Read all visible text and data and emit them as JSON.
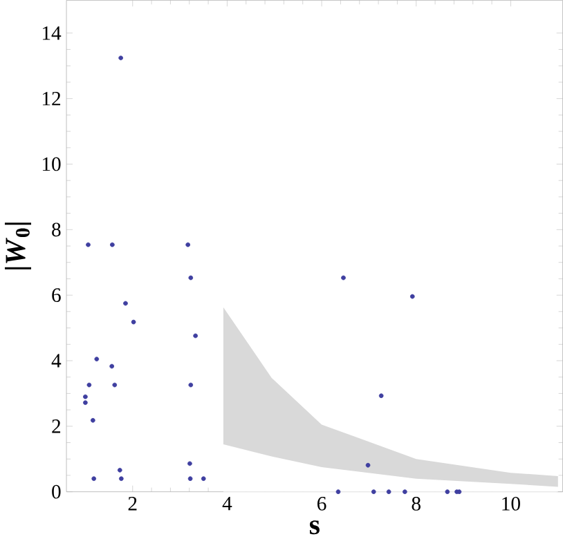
{
  "chart_data": {
    "type": "scatter",
    "xlabel": "s",
    "ylabel": "|*W*$_{0}$|",
    "xlim": [
      0.6,
      11.1
    ],
    "ylim": [
      0,
      15
    ],
    "xticks": [
      2,
      4,
      6,
      8,
      10
    ],
    "yticks": [
      0,
      2,
      4,
      6,
      8,
      10,
      12,
      14
    ],
    "grid": false,
    "stacked": true,
    "series": [
      {
        "type": "area",
        "color": "#ffffff",
        "x": [
          3.92,
          4.94,
          6.0,
          8.0,
          10.0,
          11.0
        ],
        "values": [
          1.45,
          1.08,
          0.75,
          0.4,
          0.24,
          0.15
        ]
      },
      {
        "type": "area",
        "color": "#d9d9d9",
        "x": [
          3.92,
          4.94,
          6.0,
          8.0,
          10.0,
          11.0
        ],
        "values": [
          4.18,
          2.4,
          1.3,
          0.6,
          0.34,
          0.33
        ]
      },
      {
        "color": "#3f3fa0",
        "x": [
          1.0,
          1.0,
          1.08,
          1.16,
          1.24,
          1.18,
          1.56,
          1.62,
          1.73,
          1.76,
          1.85,
          2.02,
          3.23,
          3.33,
          3.23,
          3.21,
          3.22,
          3.5,
          1.06,
          1.57,
          1.75,
          3.17,
          6.46,
          7.92,
          7.26,
          6.98,
          6.35,
          7.1,
          7.42,
          7.76,
          8.66,
          8.86,
          8.91
        ],
        "values": [
          2.9,
          2.72,
          3.26,
          2.18,
          4.05,
          0.4,
          3.83,
          3.26,
          0.66,
          0.4,
          5.75,
          5.18,
          6.53,
          4.76,
          3.26,
          0.86,
          0.4,
          0.4,
          7.54,
          7.54,
          13.24,
          7.54,
          6.53,
          5.96,
          2.93,
          0.81,
          0,
          0,
          0,
          0,
          0,
          0,
          0
        ]
      }
    ]
  }
}
